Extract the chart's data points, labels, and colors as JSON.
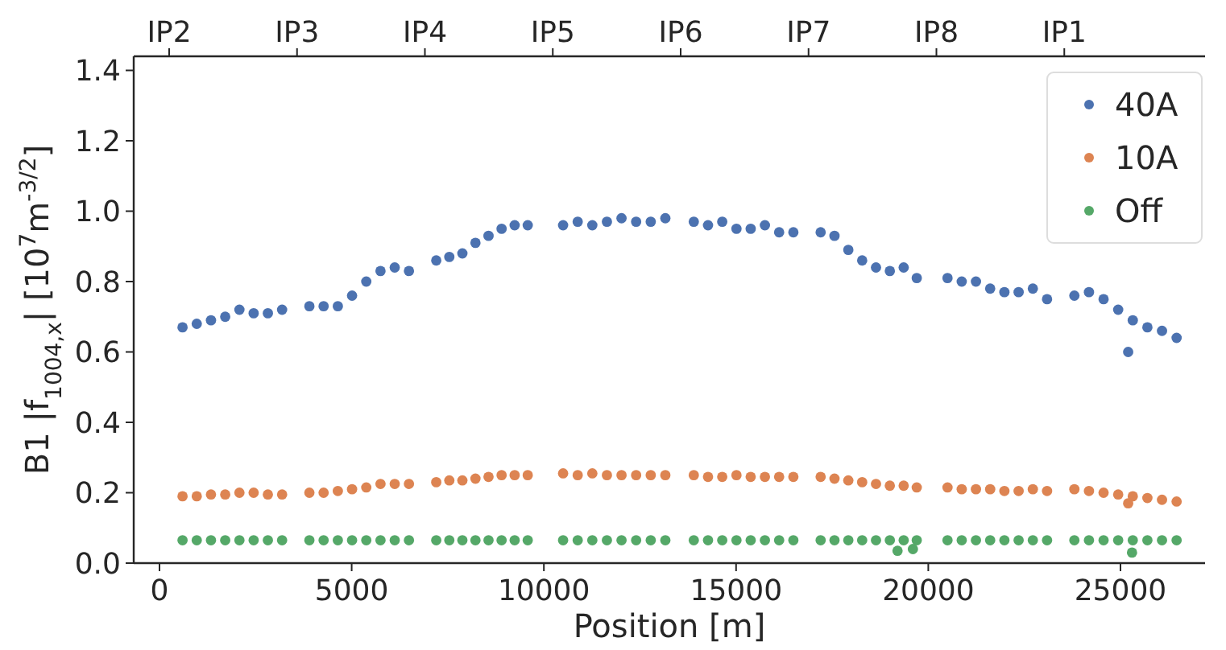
{
  "chart_data": {
    "type": "scatter",
    "xlabel": "Position [m]",
    "ylabel": "B1 |f$_{1004,x}$| [10$^{7}$m$^{-3/2}$]",
    "xlim": [
      -670,
      27200
    ],
    "xticks": [
      0,
      5000,
      10000,
      15000,
      20000,
      25000
    ],
    "annotations": [
      "IP2",
      "IP3",
      "IP4",
      "IP5",
      "IP6",
      "IP7",
      "IP8",
      "IP1"
    ],
    "ylim": [
      0,
      1.44
    ],
    "yticks": [
      {
        "value": 0,
        "label": "0.0"
      },
      0.2,
      0.4,
      0.6,
      0.8,
      {
        "value": 1,
        "label": "1.0"
      },
      1.2,
      1.4
    ],
    "grid": false,
    "legend": "top right",
    "marker": "circle",
    "series": [
      {
        "name": "40A",
        "color": "#4c72b0",
        "x": [
          600,
          970,
          1340,
          1710,
          2080,
          2450,
          2820,
          3190,
          3900,
          4270,
          4640,
          5010,
          5380,
          5750,
          6120,
          6490,
          7200,
          7540,
          7880,
          8220,
          8560,
          8900,
          9240,
          9580,
          10500,
          10880,
          11260,
          11640,
          12020,
          12400,
          12780,
          13160,
          13900,
          14270,
          14640,
          15010,
          15380,
          15750,
          16120,
          16490,
          17200,
          17560,
          17920,
          18280,
          18640,
          19000,
          19360,
          19700,
          20500,
          20870,
          21240,
          21610,
          21980,
          22350,
          22720,
          23090,
          23800,
          24180,
          24560,
          24940,
          25320,
          25700,
          26080,
          26460,
          25200
        ],
        "values": [
          0.67,
          0.68,
          0.69,
          0.7,
          0.72,
          0.71,
          0.71,
          0.72,
          0.73,
          0.73,
          0.73,
          0.76,
          0.8,
          0.83,
          0.84,
          0.83,
          0.86,
          0.87,
          0.88,
          0.91,
          0.93,
          0.95,
          0.96,
          0.96,
          0.96,
          0.97,
          0.96,
          0.97,
          0.98,
          0.97,
          0.97,
          0.98,
          0.97,
          0.96,
          0.97,
          0.95,
          0.95,
          0.96,
          0.94,
          0.94,
          0.94,
          0.93,
          0.89,
          0.86,
          0.84,
          0.83,
          0.84,
          0.81,
          0.81,
          0.8,
          0.8,
          0.78,
          0.77,
          0.77,
          0.78,
          0.75,
          0.76,
          0.77,
          0.75,
          0.72,
          0.69,
          0.67,
          0.66,
          0.64,
          0.6
        ]
      },
      {
        "name": "10A",
        "color": "#dd8452",
        "x": [
          600,
          970,
          1340,
          1710,
          2080,
          2450,
          2820,
          3190,
          3900,
          4270,
          4640,
          5010,
          5380,
          5750,
          6120,
          6490,
          7200,
          7540,
          7880,
          8220,
          8560,
          8900,
          9240,
          9580,
          10500,
          10880,
          11260,
          11640,
          12020,
          12400,
          12780,
          13160,
          13900,
          14270,
          14640,
          15010,
          15380,
          15750,
          16120,
          16490,
          17200,
          17560,
          17920,
          18280,
          18640,
          19000,
          19360,
          19700,
          20500,
          20870,
          21240,
          21610,
          21980,
          22350,
          22720,
          23090,
          23800,
          24180,
          24560,
          24940,
          25320,
          25700,
          26080,
          26460,
          25200
        ],
        "values": [
          0.19,
          0.19,
          0.195,
          0.195,
          0.2,
          0.2,
          0.195,
          0.195,
          0.2,
          0.2,
          0.205,
          0.21,
          0.215,
          0.225,
          0.225,
          0.225,
          0.23,
          0.235,
          0.235,
          0.24,
          0.245,
          0.25,
          0.25,
          0.25,
          0.255,
          0.25,
          0.255,
          0.25,
          0.25,
          0.25,
          0.25,
          0.25,
          0.25,
          0.245,
          0.245,
          0.25,
          0.245,
          0.245,
          0.245,
          0.245,
          0.245,
          0.24,
          0.235,
          0.23,
          0.225,
          0.22,
          0.22,
          0.215,
          0.215,
          0.21,
          0.21,
          0.21,
          0.205,
          0.205,
          0.21,
          0.205,
          0.21,
          0.205,
          0.2,
          0.195,
          0.19,
          0.185,
          0.18,
          0.175,
          0.17
        ]
      },
      {
        "name": "Off",
        "color": "#55a868",
        "x": [
          600,
          970,
          1340,
          1710,
          2080,
          2450,
          2820,
          3190,
          3900,
          4270,
          4640,
          5010,
          5380,
          5750,
          6120,
          6490,
          7200,
          7540,
          7880,
          8220,
          8560,
          8900,
          9240,
          9580,
          10500,
          10880,
          11260,
          11640,
          12020,
          12400,
          12780,
          13160,
          13900,
          14270,
          14640,
          15010,
          15380,
          15750,
          16120,
          16490,
          17200,
          17560,
          17920,
          18280,
          18640,
          19000,
          19360,
          19700,
          20500,
          20870,
          21240,
          21610,
          21980,
          22350,
          22720,
          23090,
          23800,
          24180,
          24560,
          24940,
          25320,
          25700,
          26080,
          26460,
          19200,
          19600,
          25300
        ],
        "values": [
          0.065,
          0.065,
          0.065,
          0.065,
          0.065,
          0.065,
          0.065,
          0.065,
          0.065,
          0.065,
          0.065,
          0.065,
          0.065,
          0.065,
          0.065,
          0.065,
          0.065,
          0.065,
          0.065,
          0.065,
          0.065,
          0.065,
          0.065,
          0.065,
          0.065,
          0.065,
          0.065,
          0.065,
          0.065,
          0.065,
          0.065,
          0.065,
          0.065,
          0.065,
          0.065,
          0.065,
          0.065,
          0.065,
          0.065,
          0.065,
          0.065,
          0.065,
          0.065,
          0.065,
          0.065,
          0.065,
          0.065,
          0.065,
          0.065,
          0.065,
          0.065,
          0.065,
          0.065,
          0.065,
          0.065,
          0.065,
          0.065,
          0.065,
          0.065,
          0.065,
          0.065,
          0.065,
          0.065,
          0.065,
          0.035,
          0.04,
          0.03
        ]
      }
    ]
  }
}
